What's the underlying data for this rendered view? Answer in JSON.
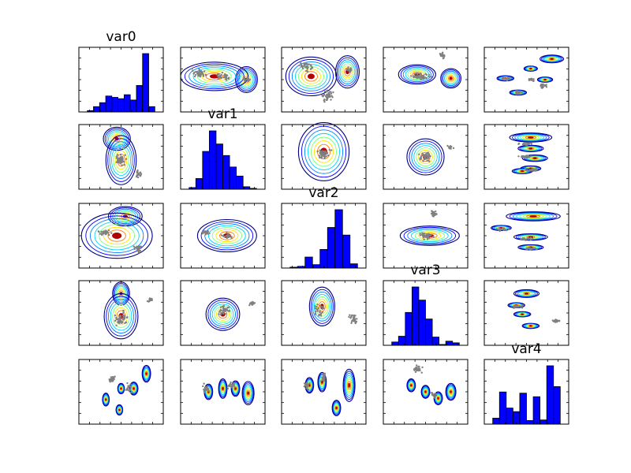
{
  "figure": {
    "background": "#ffffff",
    "axis_color": "#000000",
    "point_color": "#808080",
    "hist_color": "#0000ff",
    "contour_colors": [
      "#00007f",
      "#0000ff",
      "#0080ff",
      "#00d4ff",
      "#7dff7a",
      "#ffe600",
      "#ff7a00",
      "#b00000"
    ]
  },
  "chart_data": {
    "type": "scatter-matrix",
    "variables": [
      "var0",
      "var1",
      "var2",
      "var3",
      "var4"
    ],
    "diagonal_type": "histogram",
    "off_diagonal_type": "scatter with density contours",
    "ticks_labeled": false,
    "histograms": [
      {
        "variable": "var0",
        "counts": [
          1,
          4,
          7,
          12,
          11,
          10,
          13,
          9,
          20,
          44,
          4
        ]
      },
      {
        "variable": "var1",
        "counts": [
          2,
          13,
          46,
          71,
          55,
          41,
          27,
          16,
          3,
          1
        ]
      },
      {
        "variable": "var2",
        "counts": [
          1,
          2,
          13,
          4,
          22,
          48,
          69,
          39,
          5
        ]
      },
      {
        "variable": "var3",
        "counts": [
          4,
          11,
          40,
          71,
          55,
          32,
          10,
          1,
          5,
          3
        ]
      },
      {
        "variable": "var4",
        "counts": [
          10,
          54,
          27,
          21,
          52,
          6,
          46,
          7,
          98,
          63
        ]
      }
    ]
  }
}
